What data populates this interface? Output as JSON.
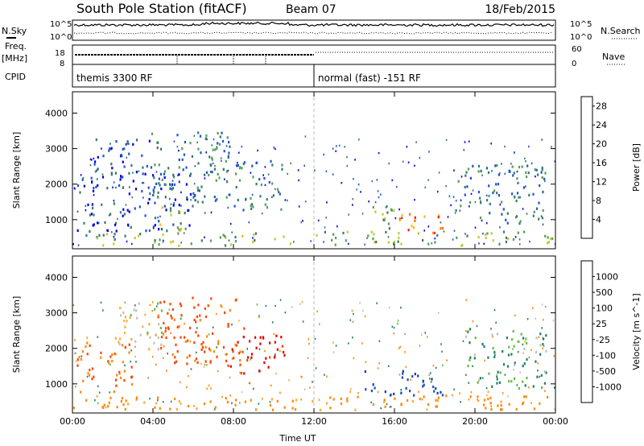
{
  "title": "South Pole Station (fitACF)",
  "beam": "Beam 07",
  "date": "18/Feb/2015",
  "header": {
    "nsky_label": "N.Sky",
    "nsearch_label": "N.Search",
    "noise_ticks_left": [
      "10^5",
      "10^0"
    ],
    "noise_ticks_right": [
      "10^5",
      "10^0"
    ],
    "freq_label_1": "Freq.",
    "freq_label_2": "[MHz]",
    "freq_ticks": [
      "18",
      "8"
    ],
    "nave_label": "Nave",
    "nave_ticks": [
      "60",
      "0"
    ],
    "cpid_label": "CPID",
    "cpid_segments": [
      {
        "label": "themis 3300 RF",
        "start_hour": 0
      },
      {
        "label": "normal (fast) -151 RF",
        "start_hour": 12
      }
    ]
  },
  "colors": {
    "power_scale": [
      "#0000ee",
      "#2255cc",
      "#3a7a6a",
      "#55a055",
      "#bbcc33",
      "#ffbb00",
      "#ff7700",
      "#ee2200"
    ],
    "velocity_scale": [
      "#e00000",
      "#ff4400",
      "#ff8800",
      "#ffaa33",
      "#c0c0c0",
      "#60c040",
      "#208060",
      "#2050c0",
      "#1040b0"
    ]
  },
  "chart_data": [
    {
      "type": "heatmap",
      "panel": "power",
      "ylabel": "Slant Range [km]",
      "xlabel": "",
      "x_ticks": [
        "00:00",
        "04:00",
        "08:00",
        "12:00",
        "16:00",
        "20:00",
        "00:00"
      ],
      "xlim_hours": [
        0,
        24
      ],
      "y_ticks": [
        1000,
        2000,
        3000,
        4000
      ],
      "ylim": [
        180,
        4600
      ],
      "colorbar": {
        "label": "Power [dB]",
        "ticks": [
          "4",
          "8",
          "12",
          "16",
          "20",
          "24",
          "28"
        ],
        "range": [
          0,
          30
        ]
      },
      "regions": [
        {
          "t0": 0.0,
          "t1": 10.8,
          "r0": 300,
          "r1": 650,
          "level": 3
        },
        {
          "t0": 0.2,
          "t1": 6.0,
          "r0": 700,
          "r1": 2400,
          "level": 1
        },
        {
          "t0": 1.0,
          "t1": 4.0,
          "r0": 2300,
          "r1": 3300,
          "level": 1
        },
        {
          "t0": 3.8,
          "t1": 8.2,
          "r0": 1500,
          "r1": 3500,
          "level": 2
        },
        {
          "t0": 8.0,
          "t1": 10.5,
          "r0": 1300,
          "r1": 2700,
          "level": 2
        },
        {
          "t0": 4.2,
          "t1": 5.6,
          "r0": 700,
          "r1": 1400,
          "level": 4
        },
        {
          "t0": 12.0,
          "t1": 24.0,
          "r0": 300,
          "r1": 700,
          "level": 3
        },
        {
          "t0": 14.5,
          "t1": 16.0,
          "r0": 700,
          "r1": 1400,
          "level": 3
        },
        {
          "t0": 16.0,
          "t1": 18.5,
          "r0": 700,
          "r1": 1200,
          "level": 6
        },
        {
          "t0": 17.5,
          "t1": 18.2,
          "r0": 550,
          "r1": 800,
          "level": 7
        },
        {
          "t0": 19.0,
          "t1": 23.5,
          "r0": 900,
          "r1": 2600,
          "level": 2
        }
      ]
    },
    {
      "type": "heatmap",
      "panel": "velocity",
      "ylabel": "Slant Range [km]",
      "xlabel": "Time UT",
      "x_ticks": [
        "00:00",
        "04:00",
        "08:00",
        "12:00",
        "16:00",
        "20:00",
        "00:00"
      ],
      "xlim_hours": [
        0,
        24
      ],
      "y_ticks": [
        1000,
        2000,
        3000,
        4000
      ],
      "ylim": [
        180,
        4600
      ],
      "colorbar": {
        "label": "Velocity [m s^-1]",
        "ticks": [
          "-1000",
          "-500",
          "-100",
          "-25",
          "25",
          "100",
          "500",
          "1000"
        ],
        "range": [
          -1000,
          1000
        ]
      },
      "regions": [
        {
          "t0": 0.0,
          "t1": 12.0,
          "r0": 300,
          "r1": 650,
          "vel": -100
        },
        {
          "t0": 0.2,
          "t1": 3.0,
          "r0": 800,
          "r1": 2200,
          "vel": -300
        },
        {
          "t0": 2.0,
          "t1": 4.5,
          "r0": 2000,
          "r1": 3300,
          "vel": 0
        },
        {
          "t0": 4.2,
          "t1": 8.5,
          "r0": 1600,
          "r1": 3500,
          "vel": -400
        },
        {
          "t0": 7.5,
          "t1": 10.5,
          "r0": 1300,
          "r1": 2400,
          "vel": -900
        },
        {
          "t0": 12.0,
          "t1": 24.0,
          "r0": 300,
          "r1": 700,
          "vel": -100
        },
        {
          "t0": 14.5,
          "t1": 18.5,
          "r0": 700,
          "r1": 1400,
          "vel": 700
        },
        {
          "t0": 19.5,
          "t1": 23.5,
          "r0": 900,
          "r1": 2600,
          "vel": 60
        }
      ]
    }
  ]
}
